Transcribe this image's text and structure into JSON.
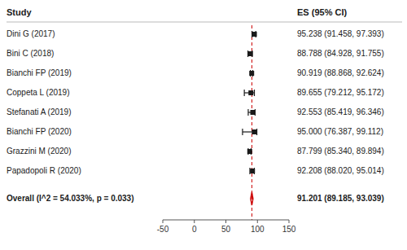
{
  "chart_data": {
    "type": "forest",
    "annotations": [
      "Study",
      "ES (95% CI)"
    ],
    "categories": [
      "Dini G (2017)",
      "Bini C (2018)",
      "Bianchi FP (2019)",
      "Coppeta L (2019)",
      "Stefanati A (2019)",
      "Bianchi FP (2020)",
      "Grazzini M (2020)",
      "Papadopoli R (2020)"
    ],
    "values": [
      95.238,
      88.788,
      90.919,
      89.655,
      92.553,
      95.0,
      87.799,
      92.208
    ],
    "ci_low": [
      91.458,
      84.928,
      88.868,
      79.212,
      85.419,
      76.387,
      85.34,
      88.02
    ],
    "ci_high": [
      97.393,
      91.755,
      92.624,
      95.172,
      96.346,
      99.112,
      89.894,
      95.014
    ],
    "value_labels": [
      "95.238 (91.458, 97.393)",
      "88.788 (84.928, 91.755)",
      "90.919 (88.868, 92.624)",
      "89.655 (79.212, 95.172)",
      "92.553 (85.419, 96.346)",
      "95.000 (76.387, 99.112)",
      "87.799 (85.340, 89.894)",
      "92.208 (88.020, 95.014)"
    ],
    "color": "#1a1a1a",
    "marker": "square",
    "overall": {
      "name": "Overall  (I^2 = 54.033%, p = 0.033)",
      "value": 91.201,
      "ci_low": 89.185,
      "ci_high": 93.039,
      "value_label": "91.201 (89.185, 93.039)",
      "color": "#cc0000",
      "marker": "diamond"
    },
    "reference_line": {
      "value": 91.201,
      "color": "#cc0000",
      "line_style": "dashed"
    },
    "xlim": [
      -50,
      150
    ],
    "xticks": [
      -50,
      0,
      50,
      100,
      150
    ]
  }
}
